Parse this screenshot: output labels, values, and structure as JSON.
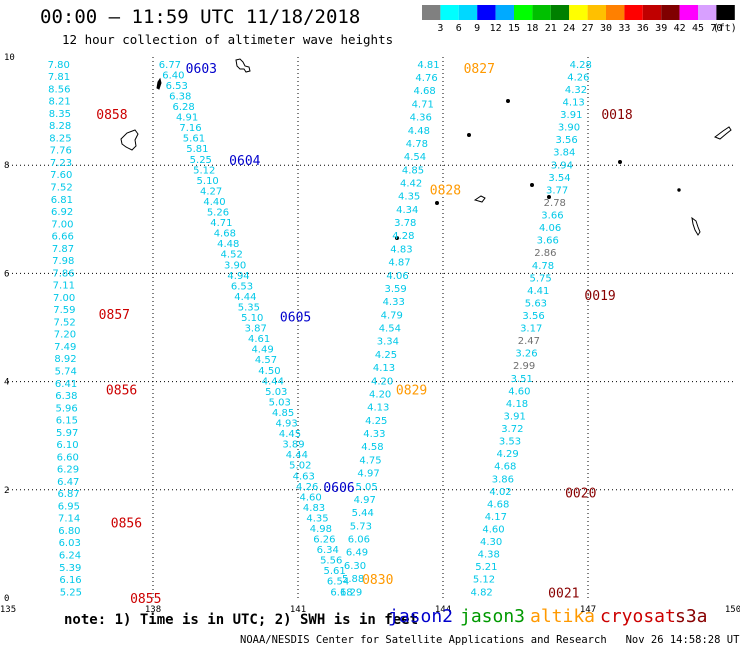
{
  "title": "00:00 – 11:59 UTC 11/18/2018",
  "subtitle": "12 hour collection of altimeter wave heights",
  "colorbar": {
    "unit": "(ft)",
    "colors": [
      "#808080",
      "#00ffff",
      "#00d8ff",
      "#0000ff",
      "#00aaff",
      "#00ff00",
      "#00c000",
      "#008000",
      "#ffff00",
      "#ffc000",
      "#ff8000",
      "#ff0000",
      "#c00000",
      "#800000",
      "#ff00ff",
      "#d8a0ff",
      "#000000"
    ],
    "labels": [
      "3",
      "6",
      "9",
      "12",
      "15",
      "18",
      "21",
      "24",
      "27",
      "30",
      "33",
      "36",
      "39",
      "42",
      "45",
      "70"
    ]
  },
  "axes": {
    "xlim": [
      135,
      150
    ],
    "ylim": [
      0,
      10
    ],
    "x_ticks": [
      "135",
      "138",
      "141",
      "144",
      "147",
      "150"
    ],
    "y_ticks": [
      "0",
      "2",
      "4",
      "6",
      "8",
      "10"
    ]
  },
  "note": "note: 1) Time is in UTC; 2) SWH is in feet",
  "satellites": [
    {
      "name": "jason2",
      "color": "#0000cc"
    },
    {
      "name": "jason3",
      "color": "#009900"
    },
    {
      "name": "altika",
      "color": "#ff9900"
    },
    {
      "name": "cryosat",
      "color": "#cc0000"
    },
    {
      "name": "s3a",
      "color": "#880000"
    }
  ],
  "credit": "NOAA/NESDIS Center for Satellite Applications and Research   Nov 26 14:58:28 UTC 2018",
  "chart_data": {
    "type": "scatter",
    "tracks": [
      {
        "id": "cryosat-left",
        "color": "#00c8e8",
        "start": [
          136.05,
          9.8
        ],
        "end": [
          136.3,
          0.05
        ],
        "values": [
          "7.80",
          "7.81",
          "8.56",
          "8.21",
          "8.35",
          "8.28",
          "8.25",
          "7.76",
          "7.23",
          "7.60",
          "7.52",
          "6.81",
          "6.92",
          "7.00",
          "6.66",
          "7.87",
          "7.98",
          "7.86",
          "7.11",
          "7.00",
          "7.59",
          "7.52",
          "7.20",
          "7.49",
          "8.92",
          "5.74",
          "6.41",
          "6.38",
          "5.96",
          "6.15",
          "5.97",
          "6.10",
          "6.60",
          "6.29",
          "6.47",
          "6.87",
          "6.95",
          "7.14",
          "6.80",
          "6.03",
          "6.24",
          "5.39",
          "6.16",
          "5.25"
        ]
      },
      {
        "id": "jason2-track",
        "color": "#00c8e8",
        "start": [
          138.35,
          9.8
        ],
        "end": [
          141.9,
          0.05
        ],
        "values": [
          "6.77",
          "6.40",
          "6.53",
          "6.38",
          "6.28",
          "4.91",
          "7.16",
          "5.61",
          "5.81",
          "5.25",
          "5.12",
          "5.10",
          "4.27",
          "4.40",
          "5.26",
          "4.71",
          "4.68",
          "4.48",
          "4.52",
          "3.90",
          "4.94",
          "6.53",
          "4.44",
          "5.35",
          "5.10",
          "3.87",
          "4.61",
          "4.49",
          "4.57",
          "4.50",
          "4.44",
          "5.03",
          "5.03",
          "4.85",
          "4.93",
          "4.45",
          "3.89",
          "4.44",
          "5.02",
          "4.63",
          "4.26",
          "4.60",
          "4.83",
          "4.35",
          "4.98",
          "6.26",
          "6.34",
          "5.56",
          "5.61",
          "6.54",
          "6.18"
        ]
      },
      {
        "id": "altika-track",
        "color": "#00c8e8",
        "start": [
          143.7,
          9.8
        ],
        "end": [
          142.1,
          0.05
        ],
        "values": [
          "4.81",
          "4.76",
          "4.68",
          "4.71",
          "4.36",
          "4.48",
          "4.78",
          "4.54",
          "4.85",
          "4.42",
          "4.35",
          "4.34",
          "3.78",
          "4.28",
          "4.83",
          "4.87",
          "4.06",
          "3.59",
          "4.33",
          "4.79",
          "4.54",
          "3.34",
          "4.25",
          "4.13",
          "4.20",
          "4.20",
          "4.13",
          "4.25",
          "4.33",
          "4.58",
          "4.75",
          "4.97",
          "5.05",
          "4.97",
          "5.44",
          "5.73",
          "6.06",
          "6.49",
          "6.30",
          "5.88",
          "6.29"
        ]
      },
      {
        "id": "s3a-track",
        "color": "#00c8e8",
        "start": [
          146.85,
          9.8
        ],
        "end": [
          144.8,
          0.05
        ],
        "values": [
          "4.28",
          "4.26",
          "4.32",
          "4.13",
          "3.91",
          "3.90",
          "3.56",
          "3.84",
          "3.94",
          "3.54",
          "3.77",
          "2.78",
          "3.66",
          "4.06",
          "3.66",
          "2.86",
          "4.78",
          "5.75",
          "4.41",
          "5.63",
          "3.56",
          "3.17",
          "2.47",
          "3.26",
          "2.99",
          "3.51",
          "4.60",
          "4.18",
          "3.91",
          "3.72",
          "3.53",
          "4.29",
          "4.68",
          "3.86",
          "4.02",
          "4.68",
          "4.17",
          "4.60",
          "4.30",
          "4.38",
          "5.21",
          "5.12",
          "4.82"
        ]
      }
    ],
    "time_labels": [
      {
        "text": "0603",
        "color": "#0000cc",
        "x": 139.0,
        "y": 9.8
      },
      {
        "text": "0604",
        "color": "#0000cc",
        "x": 139.9,
        "y": 8.1
      },
      {
        "text": "0605",
        "color": "#0000cc",
        "x": 140.95,
        "y": 5.2
      },
      {
        "text": "0606",
        "color": "#0000cc",
        "x": 141.85,
        "y": 2.05
      },
      {
        "text": "0827",
        "color": "#ff9900",
        "x": 144.75,
        "y": 9.8
      },
      {
        "text": "0828",
        "color": "#ff9900",
        "x": 144.05,
        "y": 7.55
      },
      {
        "text": "0829",
        "color": "#ff9900",
        "x": 143.35,
        "y": 3.85
      },
      {
        "text": "0830",
        "color": "#ff9900",
        "x": 142.65,
        "y": 0.35
      },
      {
        "text": "0858",
        "color": "#cc0000",
        "x": 137.15,
        "y": 8.95
      },
      {
        "text": "0857",
        "color": "#cc0000",
        "x": 137.2,
        "y": 5.25
      },
      {
        "text": "0856",
        "color": "#cc0000",
        "x": 137.35,
        "y": 3.85
      },
      {
        "text": "0856",
        "color": "#cc0000",
        "x": 137.45,
        "y": 1.4
      },
      {
        "text": "0855",
        "color": "#cc0000",
        "x": 137.85,
        "y": 0.0
      },
      {
        "text": "0018",
        "color": "#880000",
        "x": 147.6,
        "y": 8.95
      },
      {
        "text": "0019",
        "color": "#880000",
        "x": 147.25,
        "y": 5.6
      },
      {
        "text": "0020",
        "color": "#880000",
        "x": 146.85,
        "y": 1.95
      },
      {
        "text": "0021",
        "color": "#880000",
        "x": 146.5,
        "y": 0.1
      }
    ]
  }
}
